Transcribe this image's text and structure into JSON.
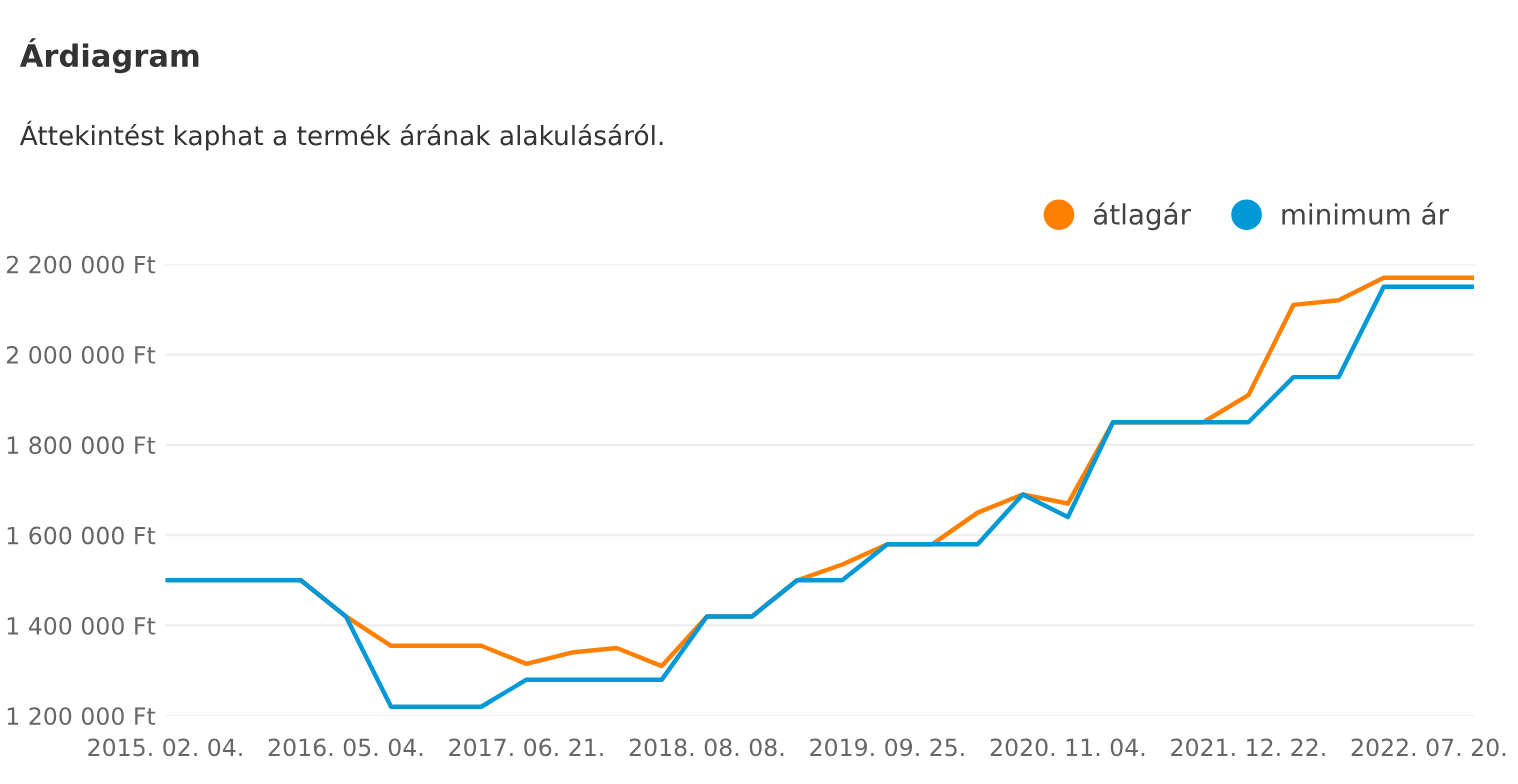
{
  "chart_data": {
    "type": "line",
    "title": "Árdiagram",
    "subtitle": "Áttekintést kaphat a termék árának alakulásáról.",
    "categories": [
      "2015. 02. 04.",
      null,
      null,
      null,
      "2016. 05. 04.",
      null,
      null,
      null,
      "2017. 06. 21.",
      null,
      null,
      null,
      "2018. 08. 08.",
      null,
      null,
      null,
      "2019. 09. 25.",
      null,
      null,
      null,
      "2020. 11. 04.",
      null,
      null,
      null,
      "2021. 12. 22.",
      null,
      null,
      null,
      "2022. 07. 20.",
      null
    ],
    "series": [
      {
        "name": "átlagár",
        "color": "#ff8000",
        "values": [
          null,
          null,
          null,
          1500000,
          1420000,
          1355000,
          1355000,
          1355000,
          1315000,
          1340000,
          1350000,
          1310000,
          1420000,
          1420000,
          1500000,
          1535000,
          1580000,
          1580000,
          1650000,
          1690000,
          1670000,
          1850000,
          1850000,
          1850000,
          1910000,
          2110000,
          2120000,
          2170000,
          2170000,
          2170000
        ]
      },
      {
        "name": "minimum ár",
        "color": "#0099d8",
        "values": [
          1500000,
          1500000,
          1500000,
          1500000,
          1420000,
          1220000,
          1220000,
          1220000,
          1280000,
          1280000,
          1280000,
          1280000,
          1420000,
          1420000,
          1500000,
          1500000,
          1580000,
          1580000,
          1580000,
          1690000,
          1640000,
          1850000,
          1850000,
          1850000,
          1850000,
          1950000,
          1950000,
          2150000,
          2150000,
          2150000
        ]
      }
    ],
    "ylim": [
      1200000,
      2200000
    ],
    "yticks": [
      {
        "value": 1200000,
        "label": "1 200 000 Ft"
      },
      {
        "value": 1400000,
        "label": "1 400 000 Ft"
      },
      {
        "value": 1600000,
        "label": "1 600 000 Ft"
      },
      {
        "value": 1800000,
        "label": "1 800 000 Ft"
      },
      {
        "value": 2000000,
        "label": "2 000 000 Ft"
      },
      {
        "value": 2200000,
        "label": "2 200 000 Ft"
      }
    ],
    "grid": "y",
    "legend": "top right",
    "marker": "none",
    "line_style": "solid"
  }
}
